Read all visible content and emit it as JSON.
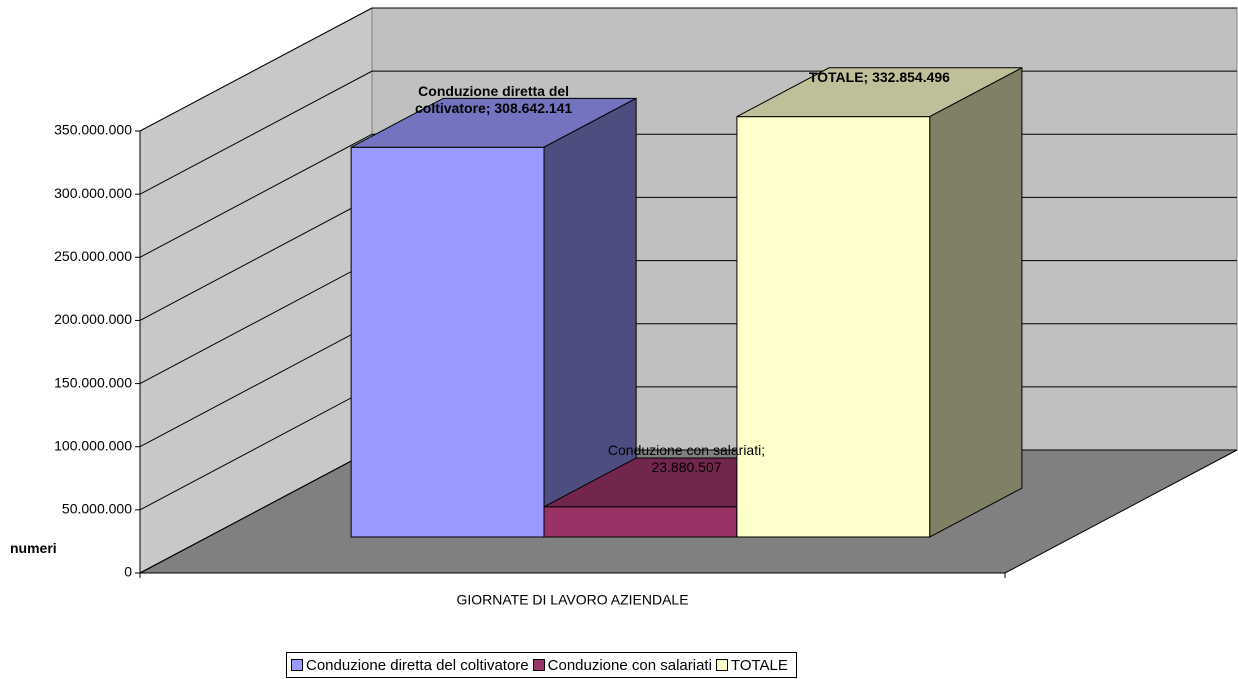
{
  "chart_data": {
    "type": "bar3d",
    "categories": [
      "GIORNATE DI LAVORO AZIENDALE"
    ],
    "y_label": "numeri",
    "series": [
      {
        "name": "Conduzione diretta del coltivatore",
        "color": "#9999ff",
        "values": [
          308642141
        ],
        "value_labels": [
          "Conduzione diretta del coltivatore; 308.642.141"
        ]
      },
      {
        "name": "Conduzione con salariati",
        "color": "#993366",
        "values": [
          23880507
        ],
        "value_labels": [
          "Conduzione con salariati; 23.880.507"
        ]
      },
      {
        "name": "TOTALE",
        "color": "#ffffcc",
        "values": [
          332854496
        ],
        "value_labels": [
          "TOTALE; 332.854.496"
        ]
      }
    ],
    "ylim": [
      0,
      350000000
    ],
    "yticks": [
      0,
      {
        "value": 50000000,
        "label": "50.000.000"
      },
      {
        "value": 100000000,
        "label": "100.000.000"
      },
      {
        "value": 150000000,
        "label": "150.000.000"
      },
      {
        "value": 200000000,
        "label": "200.000.000"
      },
      {
        "value": 250000000,
        "label": "250.000.000"
      },
      {
        "value": 300000000,
        "label": "300.000.000"
      },
      {
        "value": 350000000,
        "label": "350.000.000"
      }
    ],
    "grid": true,
    "legend": "bottom"
  }
}
